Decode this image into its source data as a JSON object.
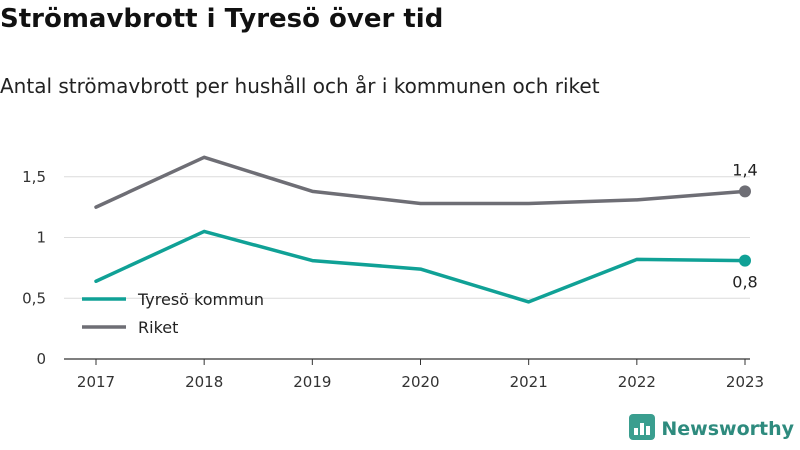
{
  "header": {
    "title": "Strömavbrott i Tyresö över tid",
    "subtitle": "Antal strömavbrott per hushåll och år i kommunen och riket"
  },
  "brand": {
    "name": "Newsworthy",
    "icon": "bar-chart-logo-icon",
    "color": "#3a9e8f"
  },
  "chart_data": {
    "type": "line",
    "title": "Strömavbrott i Tyresö över tid",
    "subtitle": "Antal strömavbrott per hushåll och år i kommunen och riket",
    "xlabel": "",
    "ylabel": "",
    "x": [
      "2017",
      "2018",
      "2019",
      "2020",
      "2021",
      "2022",
      "2023"
    ],
    "ylim": [
      0,
      1.65
    ],
    "yticks": [
      0,
      0.5,
      1,
      1.5
    ],
    "ytick_labels": [
      "0",
      "0,5",
      "1",
      "1,5"
    ],
    "grid": true,
    "legend_position": "bottom-left",
    "series": [
      {
        "name": "Tyresö kommun",
        "color": "#10a196",
        "values": [
          0.64,
          1.05,
          0.81,
          0.74,
          0.47,
          0.82,
          0.81
        ],
        "end_label": "0,8"
      },
      {
        "name": "Riket",
        "color": "#6e6e75",
        "values": [
          1.25,
          1.66,
          1.38,
          1.28,
          1.28,
          1.31,
          1.38
        ],
        "end_label": "1,4"
      }
    ]
  }
}
